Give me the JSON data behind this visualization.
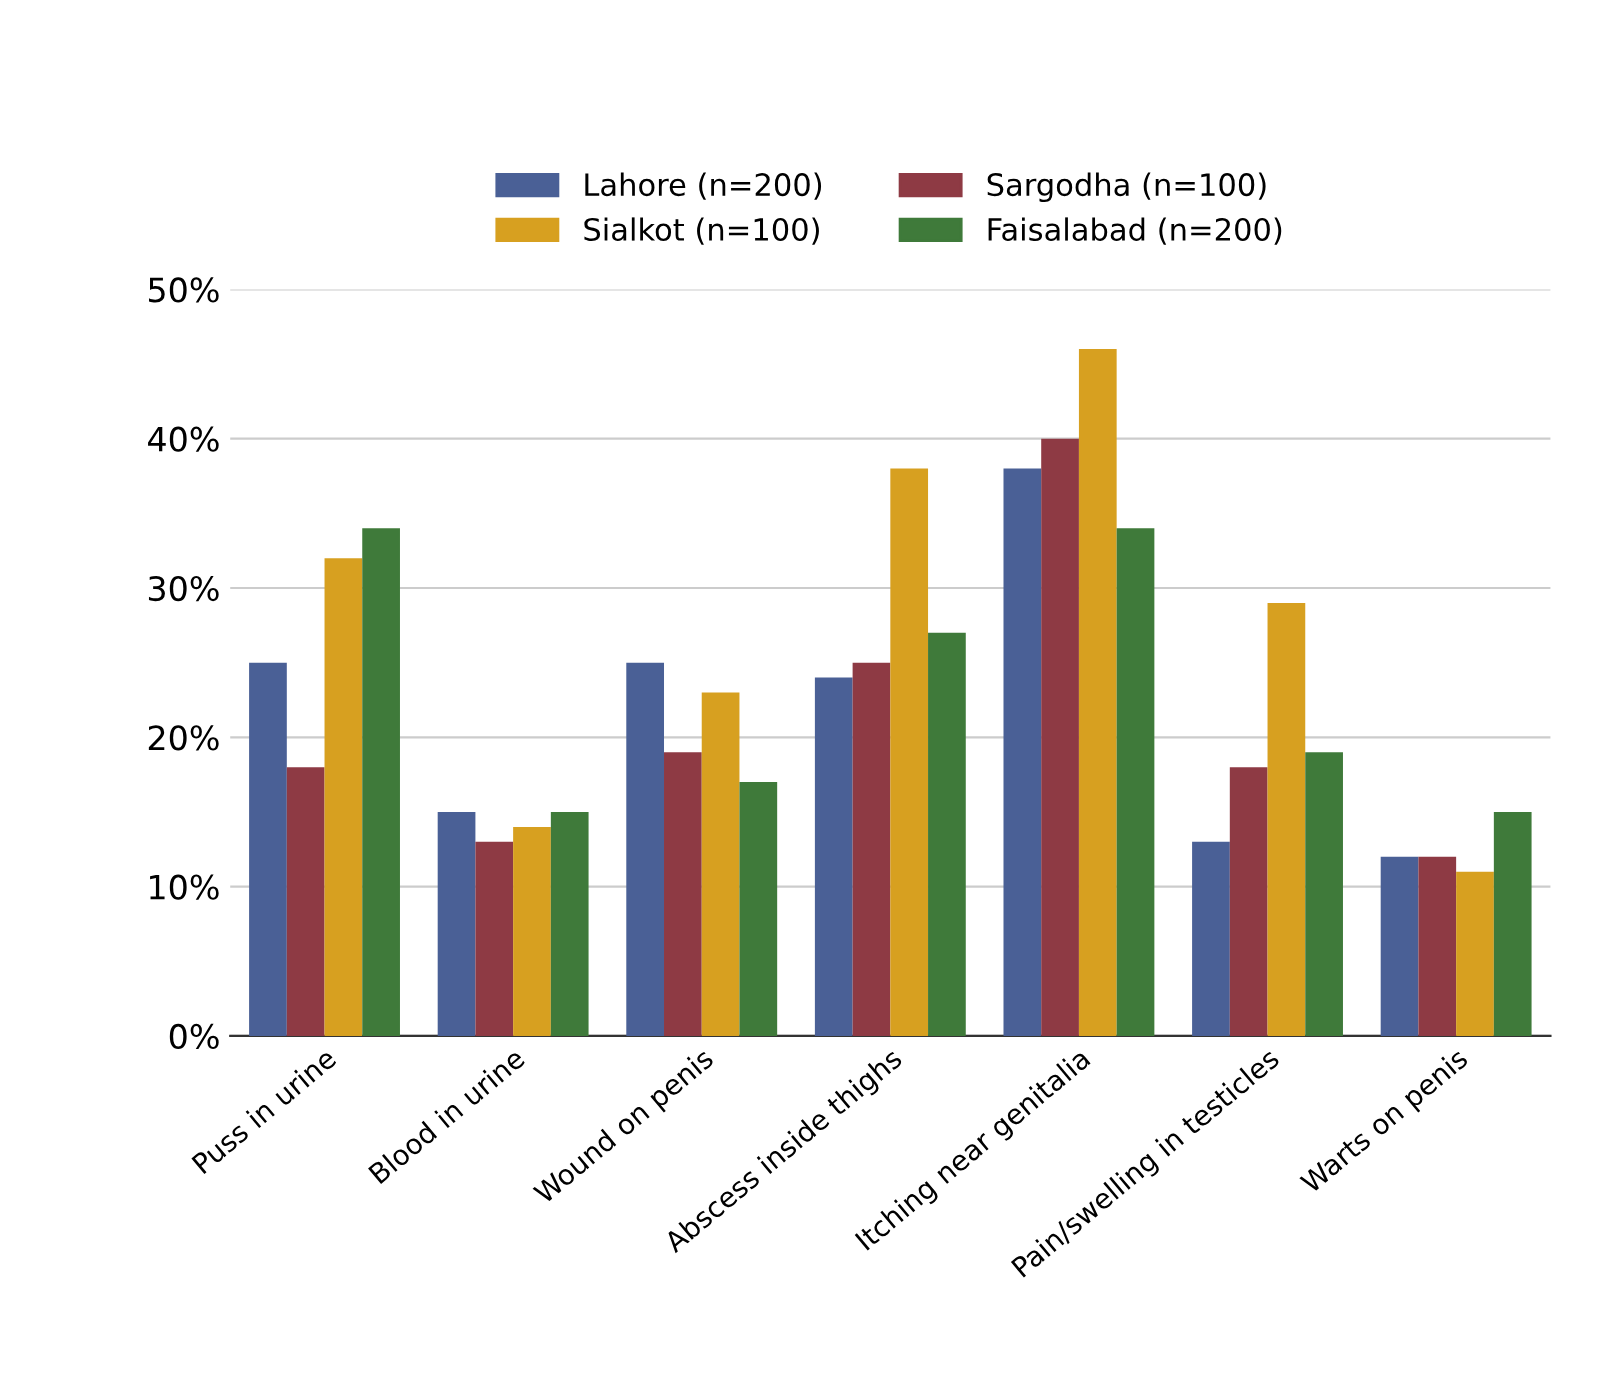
{
  "chart_data": {
    "type": "bar",
    "categories": [
      "Puss in urine",
      "Blood in urine",
      "Wound on penis",
      "Abscess inside thighs",
      "Itching near genitalia",
      "Pain/swelling in testicles",
      "Warts on penis"
    ],
    "series": [
      {
        "name": "Lahore (n=200)",
        "color": "#4a6096",
        "values": [
          25,
          15,
          25,
          24,
          38,
          13,
          12
        ]
      },
      {
        "name": "Sargodha (n=100)",
        "color": "#8e3a44",
        "values": [
          18,
          13,
          19,
          25,
          40,
          18,
          12
        ]
      },
      {
        "name": "Sialkot (n=100)",
        "color": "#d7a020",
        "values": [
          32,
          14,
          23,
          38,
          46,
          29,
          11
        ]
      },
      {
        "name": "Faisalabad (n=200)",
        "color": "#3f7a3a",
        "values": [
          34,
          15,
          17,
          27,
          34,
          19,
          15
        ]
      }
    ],
    "ylim": [
      0,
      50
    ],
    "yticks": [
      {
        "value": 0,
        "label": "0%"
      },
      {
        "value": 10,
        "label": "10%"
      },
      {
        "value": 20,
        "label": "20%"
      },
      {
        "value": 30,
        "label": "30%"
      },
      {
        "value": 40,
        "label": "40%"
      },
      {
        "value": 50,
        "label": "50%"
      }
    ],
    "grid": "y",
    "legend": "top"
  }
}
